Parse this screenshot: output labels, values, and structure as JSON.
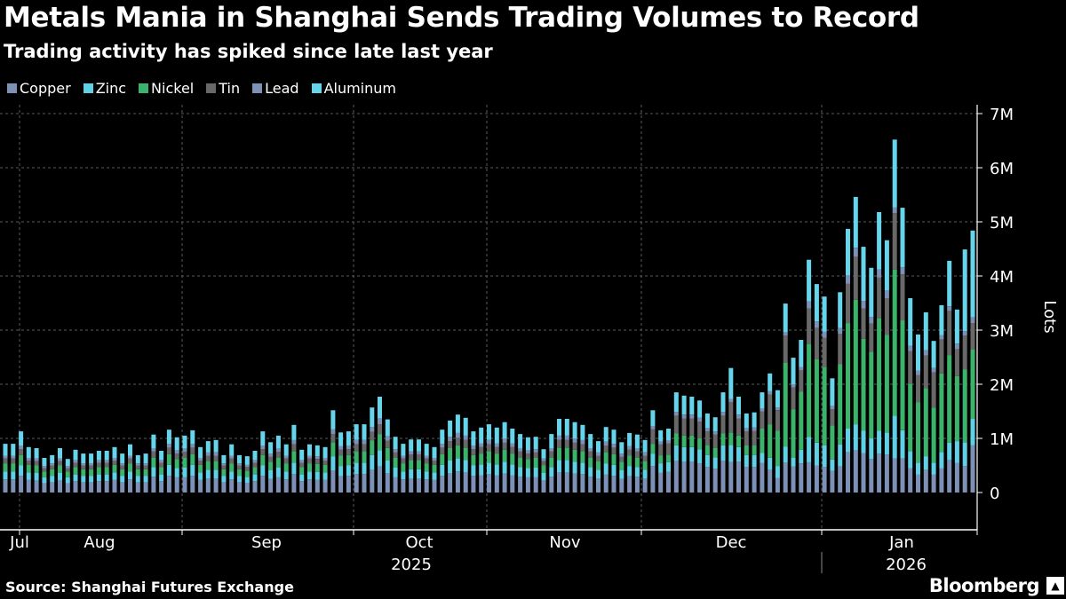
{
  "title": "Metals Mania in Shanghai Sends Trading Volumes to Record",
  "subtitle": "Trading activity has spiked since late last year",
  "source": "Source: Shanghai Futures Exchange",
  "logo": "Bloomberg",
  "chart_data": {
    "type": "bar",
    "stacked": true,
    "title": "Metals Mania in Shanghai Sends Trading Volumes to Record",
    "subtitle": "Trading activity has spiked since late last year",
    "ylabel": "Lots",
    "ylim": [
      0,
      7000000
    ],
    "y_unit": "M lots",
    "y_ticks": [
      "0",
      "1M",
      "2M",
      "3M",
      "4M",
      "5M",
      "6M",
      "7M"
    ],
    "x_ticks": [
      "Jul",
      "Aug",
      "Sep",
      "Oct",
      "Nov",
      "Dec",
      "Jan"
    ],
    "x_years": [
      "2025",
      "2026"
    ],
    "grid": true,
    "legend_position": "top-left",
    "series": [
      {
        "name": "Copper",
        "color": "#7d90b6"
      },
      {
        "name": "Zinc",
        "color": "#5fd0e6"
      },
      {
        "name": "Nickel",
        "color": "#3bb36a"
      },
      {
        "name": "Tin",
        "color": "#686868"
      },
      {
        "name": "Lead",
        "color": "#7d90b6"
      },
      {
        "name": "Aluminum",
        "color": "#66d4ea"
      }
    ],
    "bars_millions_by_series_order": [
      [
        0.24,
        0.15,
        0.15,
        0.09,
        0.05,
        0.22
      ],
      [
        0.24,
        0.15,
        0.15,
        0.09,
        0.05,
        0.22
      ],
      [
        0.31,
        0.19,
        0.19,
        0.11,
        0.07,
        0.26
      ],
      [
        0.23,
        0.14,
        0.14,
        0.08,
        0.05,
        0.2
      ],
      [
        0.22,
        0.14,
        0.14,
        0.08,
        0.05,
        0.19
      ],
      [
        0.17,
        0.11,
        0.11,
        0.06,
        0.04,
        0.15
      ],
      [
        0.19,
        0.12,
        0.12,
        0.07,
        0.04,
        0.15
      ],
      [
        0.22,
        0.14,
        0.14,
        0.08,
        0.05,
        0.19
      ],
      [
        0.17,
        0.11,
        0.11,
        0.06,
        0.04,
        0.13
      ],
      [
        0.21,
        0.13,
        0.13,
        0.08,
        0.05,
        0.19
      ],
      [
        0.19,
        0.12,
        0.12,
        0.07,
        0.04,
        0.18
      ],
      [
        0.19,
        0.12,
        0.12,
        0.07,
        0.04,
        0.18
      ],
      [
        0.21,
        0.13,
        0.13,
        0.08,
        0.05,
        0.17
      ],
      [
        0.21,
        0.13,
        0.13,
        0.08,
        0.05,
        0.17
      ],
      [
        0.23,
        0.14,
        0.14,
        0.08,
        0.05,
        0.2
      ],
      [
        0.19,
        0.12,
        0.12,
        0.07,
        0.04,
        0.18
      ],
      [
        0.24,
        0.15,
        0.15,
        0.09,
        0.05,
        0.21
      ],
      [
        0.19,
        0.12,
        0.12,
        0.07,
        0.04,
        0.15
      ],
      [
        0.19,
        0.12,
        0.12,
        0.07,
        0.04,
        0.18
      ],
      [
        0.29,
        0.18,
        0.18,
        0.11,
        0.06,
        0.25
      ],
      [
        0.21,
        0.13,
        0.13,
        0.08,
        0.05,
        0.17
      ],
      [
        0.31,
        0.2,
        0.2,
        0.12,
        0.07,
        0.26
      ],
      [
        0.28,
        0.17,
        0.17,
        0.1,
        0.06,
        0.24
      ],
      [
        0.28,
        0.18,
        0.18,
        0.11,
        0.06,
        0.24
      ],
      [
        0.31,
        0.2,
        0.2,
        0.12,
        0.07,
        0.25
      ],
      [
        0.23,
        0.14,
        0.14,
        0.08,
        0.05,
        0.2
      ],
      [
        0.26,
        0.16,
        0.16,
        0.1,
        0.06,
        0.21
      ],
      [
        0.26,
        0.16,
        0.16,
        0.1,
        0.06,
        0.23
      ],
      [
        0.19,
        0.12,
        0.12,
        0.07,
        0.04,
        0.15
      ],
      [
        0.24,
        0.15,
        0.15,
        0.09,
        0.05,
        0.21
      ],
      [
        0.19,
        0.12,
        0.12,
        0.07,
        0.04,
        0.15
      ],
      [
        0.18,
        0.11,
        0.11,
        0.07,
        0.04,
        0.16
      ],
      [
        0.21,
        0.13,
        0.13,
        0.08,
        0.05,
        0.17
      ],
      [
        0.31,
        0.19,
        0.19,
        0.11,
        0.07,
        0.26
      ],
      [
        0.25,
        0.16,
        0.16,
        0.09,
        0.06,
        0.21
      ],
      [
        0.28,
        0.18,
        0.18,
        0.11,
        0.06,
        0.24
      ],
      [
        0.24,
        0.15,
        0.15,
        0.09,
        0.05,
        0.21
      ],
      [
        0.34,
        0.21,
        0.21,
        0.13,
        0.08,
        0.28
      ],
      [
        0.21,
        0.13,
        0.13,
        0.08,
        0.05,
        0.19
      ],
      [
        0.24,
        0.15,
        0.15,
        0.09,
        0.05,
        0.21
      ],
      [
        0.23,
        0.15,
        0.15,
        0.09,
        0.05,
        0.2
      ],
      [
        0.23,
        0.14,
        0.14,
        0.08,
        0.05,
        0.2
      ],
      [
        0.41,
        0.26,
        0.26,
        0.15,
        0.09,
        0.35
      ],
      [
        0.3,
        0.19,
        0.19,
        0.11,
        0.07,
        0.25
      ],
      [
        0.31,
        0.19,
        0.19,
        0.11,
        0.07,
        0.26
      ],
      [
        0.34,
        0.21,
        0.21,
        0.13,
        0.08,
        0.29
      ],
      [
        0.34,
        0.21,
        0.21,
        0.13,
        0.08,
        0.29
      ],
      [
        0.42,
        0.27,
        0.27,
        0.16,
        0.09,
        0.36
      ],
      [
        0.48,
        0.3,
        0.3,
        0.18,
        0.11,
        0.4
      ],
      [
        0.36,
        0.23,
        0.23,
        0.14,
        0.08,
        0.31
      ],
      [
        0.28,
        0.18,
        0.18,
        0.1,
        0.06,
        0.23
      ],
      [
        0.24,
        0.15,
        0.15,
        0.09,
        0.05,
        0.22
      ],
      [
        0.26,
        0.17,
        0.17,
        0.1,
        0.06,
        0.22
      ],
      [
        0.26,
        0.17,
        0.17,
        0.1,
        0.06,
        0.22
      ],
      [
        0.24,
        0.15,
        0.15,
        0.09,
        0.05,
        0.22
      ],
      [
        0.23,
        0.14,
        0.14,
        0.08,
        0.05,
        0.2
      ],
      [
        0.31,
        0.2,
        0.2,
        0.12,
        0.07,
        0.26
      ],
      [
        0.36,
        0.23,
        0.23,
        0.13,
        0.08,
        0.3
      ],
      [
        0.39,
        0.24,
        0.24,
        0.14,
        0.09,
        0.34
      ],
      [
        0.37,
        0.23,
        0.23,
        0.14,
        0.08,
        0.33
      ],
      [
        0.31,
        0.19,
        0.19,
        0.11,
        0.07,
        0.26
      ],
      [
        0.32,
        0.2,
        0.2,
        0.12,
        0.07,
        0.29
      ],
      [
        0.34,
        0.21,
        0.21,
        0.13,
        0.08,
        0.29
      ],
      [
        0.32,
        0.2,
        0.2,
        0.12,
        0.07,
        0.29
      ],
      [
        0.35,
        0.22,
        0.22,
        0.13,
        0.08,
        0.3
      ],
      [
        0.32,
        0.2,
        0.2,
        0.12,
        0.07,
        0.27
      ],
      [
        0.29,
        0.18,
        0.18,
        0.11,
        0.06,
        0.26
      ],
      [
        0.28,
        0.17,
        0.17,
        0.1,
        0.06,
        0.24
      ],
      [
        0.28,
        0.18,
        0.18,
        0.1,
        0.06,
        0.23
      ],
      [
        0.22,
        0.14,
        0.14,
        0.08,
        0.05,
        0.17
      ],
      [
        0.29,
        0.18,
        0.18,
        0.11,
        0.06,
        0.26
      ],
      [
        0.37,
        0.23,
        0.23,
        0.14,
        0.08,
        0.31
      ],
      [
        0.37,
        0.23,
        0.23,
        0.14,
        0.08,
        0.31
      ],
      [
        0.35,
        0.22,
        0.22,
        0.13,
        0.08,
        0.3
      ],
      [
        0.34,
        0.21,
        0.21,
        0.13,
        0.08,
        0.28
      ],
      [
        0.29,
        0.18,
        0.18,
        0.11,
        0.06,
        0.26
      ],
      [
        0.26,
        0.16,
        0.16,
        0.1,
        0.06,
        0.21
      ],
      [
        0.33,
        0.21,
        0.21,
        0.12,
        0.07,
        0.27
      ],
      [
        0.31,
        0.2,
        0.2,
        0.12,
        0.07,
        0.26
      ],
      [
        0.25,
        0.16,
        0.16,
        0.09,
        0.06,
        0.21
      ],
      [
        0.3,
        0.19,
        0.19,
        0.11,
        0.07,
        0.24
      ],
      [
        0.29,
        0.18,
        0.18,
        0.11,
        0.06,
        0.25
      ],
      [
        0.26,
        0.16,
        0.16,
        0.1,
        0.06,
        0.23
      ],
      [
        0.49,
        0.23,
        0.18,
        0.27,
        0.06,
        0.29
      ],
      [
        0.37,
        0.17,
        0.14,
        0.21,
        0.05,
        0.21
      ],
      [
        0.38,
        0.18,
        0.14,
        0.21,
        0.05,
        0.22
      ],
      [
        0.59,
        0.28,
        0.22,
        0.33,
        0.07,
        0.36
      ],
      [
        0.57,
        0.27,
        0.21,
        0.32,
        0.07,
        0.35
      ],
      [
        0.57,
        0.27,
        0.21,
        0.32,
        0.07,
        0.33
      ],
      [
        0.54,
        0.26,
        0.2,
        0.31,
        0.07,
        0.32
      ],
      [
        0.47,
        0.22,
        0.18,
        0.26,
        0.06,
        0.27
      ],
      [
        0.44,
        0.21,
        0.17,
        0.25,
        0.06,
        0.26
      ],
      [
        0.59,
        0.28,
        0.22,
        0.33,
        0.07,
        0.36
      ],
      [
        0.56,
        0.32,
        0.23,
        0.56,
        0.06,
        0.57
      ],
      [
        0.57,
        0.27,
        0.21,
        0.32,
        0.07,
        0.33
      ],
      [
        0.47,
        0.22,
        0.18,
        0.26,
        0.06,
        0.27
      ],
      [
        0.47,
        0.22,
        0.18,
        0.27,
        0.06,
        0.28
      ],
      [
        0.55,
        0.18,
        0.45,
        0.32,
        0.05,
        0.3
      ],
      [
        0.42,
        0.22,
        0.62,
        0.55,
        0.06,
        0.33
      ],
      [
        0.27,
        0.22,
        0.65,
        0.38,
        0.05,
        0.32
      ],
      [
        0.55,
        0.3,
        1.55,
        0.5,
        0.06,
        0.53
      ],
      [
        0.48,
        0.16,
        0.9,
        0.4,
        0.06,
        0.49
      ],
      [
        0.54,
        0.25,
        1.07,
        0.4,
        0.06,
        0.5
      ],
      [
        0.56,
        0.47,
        1.72,
        0.65,
        0.13,
        0.77
      ],
      [
        0.5,
        0.42,
        1.54,
        0.58,
        0.12,
        0.69
      ],
      [
        0.47,
        0.4,
        1.45,
        0.54,
        0.11,
        0.65
      ],
      [
        0.4,
        0.21,
        0.63,
        0.3,
        0.06,
        0.51
      ],
      [
        0.48,
        0.41,
        1.48,
        0.56,
        0.11,
        0.66
      ],
      [
        0.74,
        0.44,
        1.95,
        0.73,
        0.15,
        0.86
      ],
      [
        0.78,
        0.48,
        2.3,
        0.8,
        0.16,
        0.94
      ],
      [
        0.73,
        0.41,
        1.7,
        0.56,
        0.14,
        1.0
      ],
      [
        0.62,
        0.38,
        1.6,
        0.52,
        0.12,
        0.91
      ],
      [
        0.72,
        0.42,
        2.08,
        0.75,
        0.15,
        1.06
      ],
      [
        0.7,
        0.41,
        1.8,
        0.68,
        0.14,
        0.93
      ],
      [
        0.63,
        0.79,
        2.7,
        1.04,
        0.11,
        1.25
      ],
      [
        0.63,
        0.52,
        2.03,
        0.85,
        0.13,
        1.1
      ],
      [
        0.45,
        0.31,
        1.25,
        0.6,
        0.1,
        0.88
      ],
      [
        0.33,
        0.22,
        1.12,
        0.5,
        0.08,
        0.67
      ],
      [
        0.42,
        0.25,
        1.26,
        0.6,
        0.1,
        0.7
      ],
      [
        0.33,
        0.22,
        1.02,
        0.65,
        0.08,
        0.5
      ],
      [
        0.45,
        0.3,
        1.45,
        0.63,
        0.08,
        0.55
      ],
      [
        0.6,
        0.32,
        1.62,
        0.82,
        0.08,
        0.84
      ],
      [
        0.55,
        0.4,
        1.2,
        0.5,
        0.1,
        0.63
      ],
      [
        0.49,
        0.44,
        1.34,
        0.63,
        0.08,
        1.51
      ],
      [
        0.87,
        0.49,
        1.28,
        0.49,
        0.11,
        1.6
      ]
    ]
  }
}
